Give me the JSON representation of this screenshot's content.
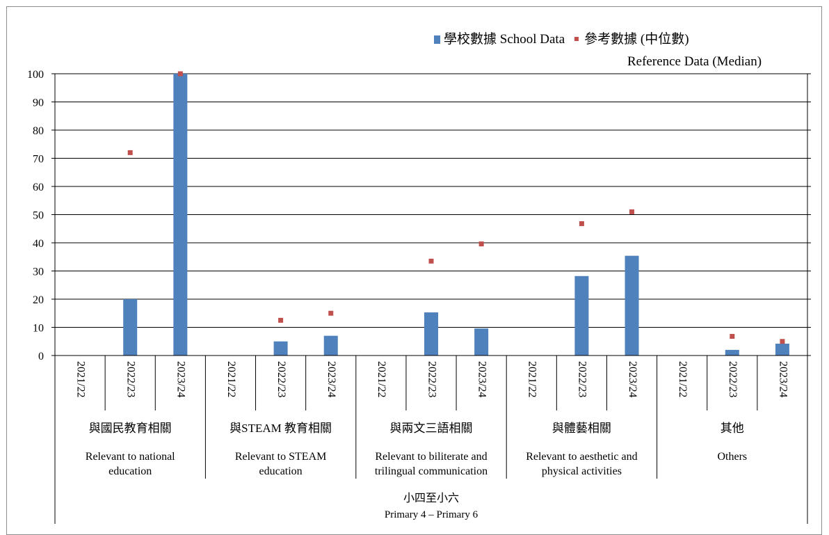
{
  "chart_data": {
    "type": "bar",
    "categories": [
      "2021/22",
      "2022/23",
      "2023/24",
      "2021/22",
      "2022/23",
      "2023/24",
      "2021/22",
      "2022/23",
      "2023/24",
      "2021/22",
      "2022/23",
      "2023/24",
      "2021/22",
      "2022/23",
      "2023/24"
    ],
    "groups": [
      {
        "zh": "與國民教育相關",
        "en": [
          "Relevant to national",
          "education"
        ]
      },
      {
        "zh": "與STEAM 教育相關",
        "en": [
          "Relevant to STEAM",
          "education"
        ]
      },
      {
        "zh": "與兩文三語相關",
        "en": [
          "Relevant to biliterate and",
          "trilingual communication"
        ]
      },
      {
        "zh": "與體藝相關",
        "en": [
          "Relevant to aesthetic and",
          "physical activities"
        ]
      },
      {
        "zh": "其他",
        "en": [
          "Others"
        ]
      }
    ],
    "outer_group": {
      "zh": "小四至小六",
      "en": "Primary 4 – Primary 6"
    },
    "series": [
      {
        "name": "學校數據 School Data",
        "kind": "bar",
        "color": "#4f81bd",
        "values": [
          null,
          20,
          100,
          null,
          5,
          7,
          null,
          15.3,
          9.6,
          null,
          28.2,
          35.4,
          null,
          2,
          4.2
        ]
      },
      {
        "name": "參考數據 (中位數) Reference Data (Median)",
        "kind": "marker",
        "color": "#c0504d",
        "values": [
          null,
          72,
          100,
          null,
          12.5,
          15,
          null,
          33.5,
          39.6,
          null,
          46.8,
          51,
          null,
          6.8,
          5
        ]
      }
    ],
    "legend": {
      "bar_label": "學校數據 School Data",
      "marker_label_line1": "參考數據 (中位數)",
      "marker_label_line2": "Reference Data (Median)"
    },
    "ylim": [
      0,
      100
    ],
    "yticks": [
      0,
      10,
      20,
      30,
      40,
      50,
      60,
      70,
      80,
      90,
      100
    ],
    "grid": true,
    "legend_position": "top-right"
  }
}
